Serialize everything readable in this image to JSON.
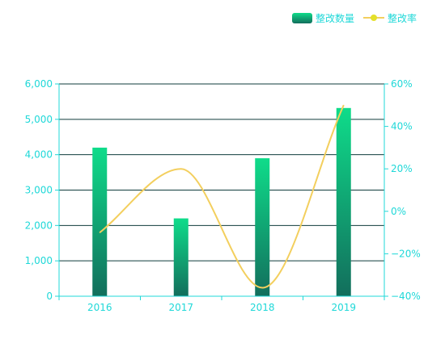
{
  "chart_data": {
    "type": "bar",
    "categories": [
      "2016",
      "2017",
      "2018",
      "2019"
    ],
    "series": [
      {
        "name": "整改数量",
        "type": "bar",
        "axis": "left",
        "values": [
          4200,
          2200,
          3900,
          5320
        ]
      },
      {
        "name": "整改率",
        "type": "line",
        "axis": "right",
        "smooth": true,
        "values": [
          -10,
          20,
          -36,
          50
        ]
      }
    ],
    "y_left": {
      "ylim": [
        0,
        6000
      ],
      "ticks": [
        "0",
        "1,000",
        "2,000",
        "3,000",
        "4,000",
        "5,000",
        "6,000"
      ]
    },
    "y_right": {
      "ylim": [
        -40,
        60
      ],
      "ticks": [
        "−40%",
        "−20%",
        "0%",
        "20%",
        "40%",
        "60%"
      ]
    },
    "grid": true,
    "legend": "top-right",
    "colors": {
      "bar_top": "#0fdc8a",
      "bar_bottom": "#126e5c",
      "line": "#f3cf5e",
      "legend_dot": "#e4e02a",
      "axis": "#1fd8d8",
      "grid": "#0f3b3b"
    }
  }
}
